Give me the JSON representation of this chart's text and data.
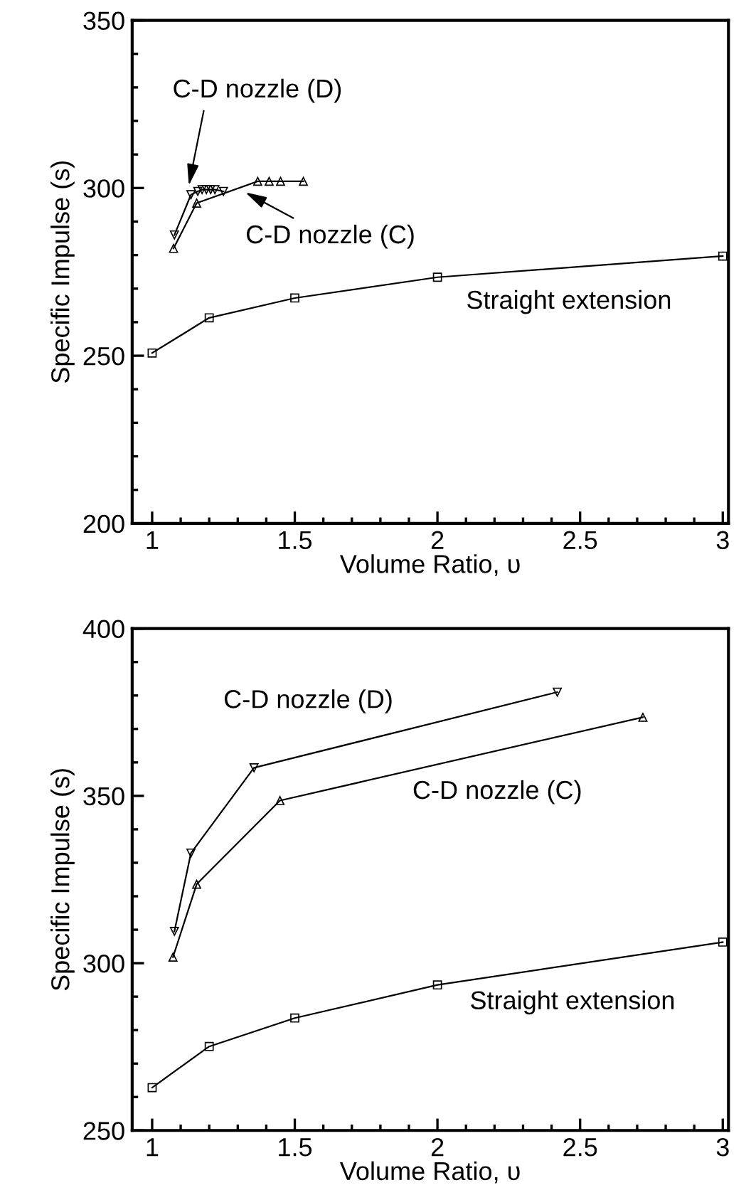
{
  "chart_data": [
    {
      "type": "line",
      "xlabel": "Volume Ratio, υ",
      "ylabel": "Specific Impulse (s)",
      "xlim": [
        0.93,
        3.02
      ],
      "ylim": [
        200,
        350
      ],
      "xticks": [
        1,
        1.5,
        2,
        2.5,
        3
      ],
      "yticks": [
        200,
        250,
        300,
        350
      ],
      "grid": false,
      "legend": false,
      "series": [
        {
          "color": "#000000",
          "marker": "square",
          "x": [
            1.0,
            1.2,
            1.5,
            2.0,
            3.0
          ],
          "values": [
            250.8,
            261.3,
            267.2,
            273.4,
            279.7
          ]
        },
        {
          "color": "#000000",
          "marker": "triangle",
          "x": [
            1.075,
            1.156,
            1.37,
            1.41,
            1.45,
            1.53
          ],
          "values": [
            282,
            295.5,
            302,
            302,
            302,
            302
          ]
        },
        {
          "color": "#000000",
          "marker": "triangle_down",
          "x": [
            1.078,
            1.136,
            1.16,
            1.175,
            1.19,
            1.205,
            1.22,
            1.25
          ],
          "values": [
            286,
            298,
            299,
            299.5,
            299.5,
            299.5,
            299.5,
            299
          ]
        }
      ],
      "annotations": [
        "C-D nozzle (D)",
        "C-D nozzle (C)",
        "Straight extension"
      ]
    },
    {
      "type": "line",
      "xlabel": "Volume Ratio, υ",
      "ylabel": "Specific Impulse (s)",
      "xlim": [
        0.93,
        3.02
      ],
      "ylim": [
        250,
        400
      ],
      "xticks": [
        1,
        1.5,
        2,
        2.5,
        3
      ],
      "yticks": [
        250,
        300,
        350,
        400
      ],
      "grid": false,
      "legend": false,
      "series": [
        {
          "color": "#000000",
          "marker": "square",
          "x": [
            1.0,
            1.2,
            1.5,
            2.0,
            3.0
          ],
          "values": [
            262.8,
            275.1,
            283.6,
            293.5,
            306.3
          ]
        },
        {
          "color": "#000000",
          "marker": "triangle",
          "x": [
            1.073,
            1.156,
            1.448,
            2.72
          ],
          "values": [
            301.8,
            323.6,
            348.6,
            373.5
          ]
        },
        {
          "color": "#000000",
          "marker": "triangle_down",
          "x": [
            1.078,
            1.136,
            1.357,
            2.42
          ],
          "values": [
            309.5,
            332.9,
            358.4,
            381
          ]
        }
      ],
      "annotations": [
        "C-D nozzle (D)",
        "C-D nozzle (C)",
        "Straight extension"
      ]
    }
  ]
}
